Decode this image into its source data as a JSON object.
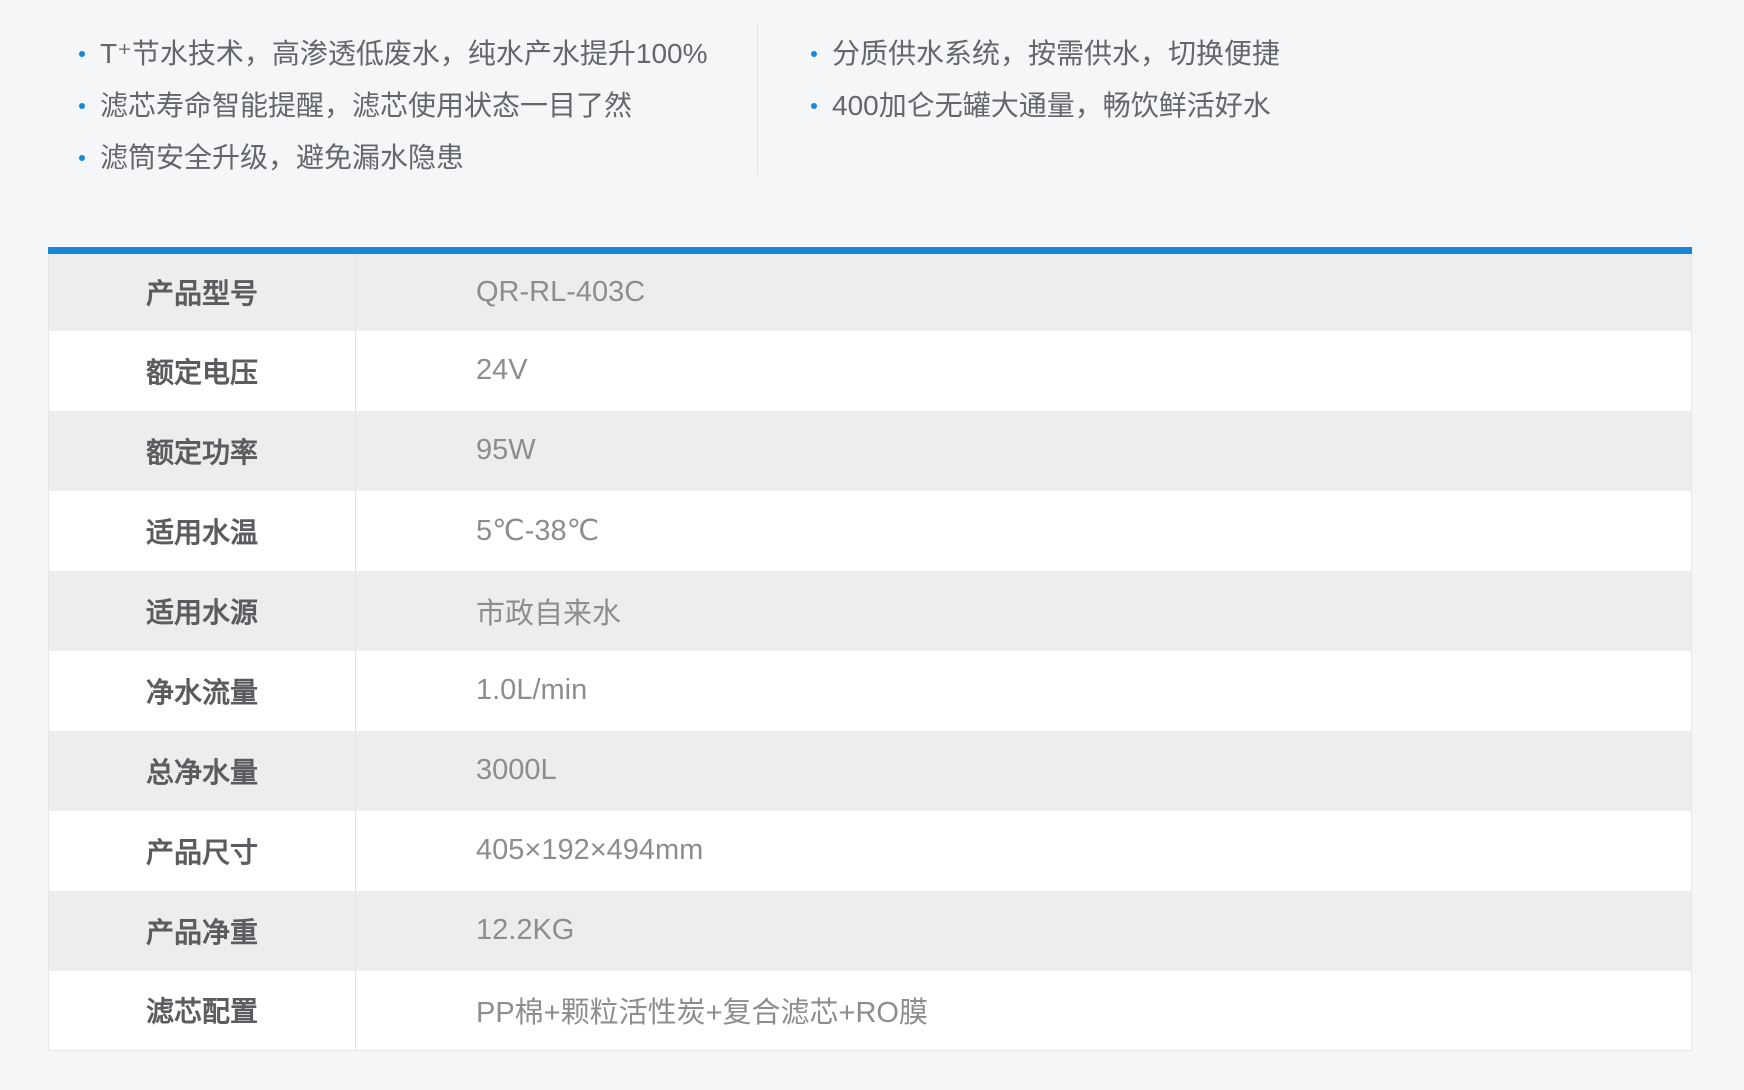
{
  "colors": {
    "accent_blue": "#1787d9",
    "page_background": "#f5f6f7",
    "row_alt_background": "#ededee",
    "table_border": "#e6e7e9",
    "divider": "#e3e4e6",
    "feature_text": "#63666b",
    "label_text": "#5a5c5f",
    "value_text": "#8b8d90"
  },
  "features": {
    "left": [
      "T⁺节水技术，高渗透低废水，纯水产水提升100%",
      "滤芯寿命智能提醒，滤芯使用状态一目了然",
      "滤筒安全升级，避免漏水隐患"
    ],
    "right": [
      "分质供水系统，按需供水，切换便捷",
      "400加仑无罐大通量，畅饮鲜活好水"
    ]
  },
  "spec_table": {
    "rows": [
      {
        "label": "产品型号",
        "value": "QR-RL-403C"
      },
      {
        "label": "额定电压",
        "value": "24V"
      },
      {
        "label": "额定功率",
        "value": "95W"
      },
      {
        "label": "适用水温",
        "value": "5℃-38℃"
      },
      {
        "label": "适用水源",
        "value": "市政自来水"
      },
      {
        "label": "净水流量",
        "value": "1.0L/min"
      },
      {
        "label": "总净水量",
        "value": "3000L"
      },
      {
        "label": "产品尺寸",
        "value": "405×192×494mm"
      },
      {
        "label": "产品净重",
        "value": "12.2KG"
      },
      {
        "label": "滤芯配置",
        "value": "PP棉+颗粒活性炭+复合滤芯+RO膜"
      }
    ]
  }
}
